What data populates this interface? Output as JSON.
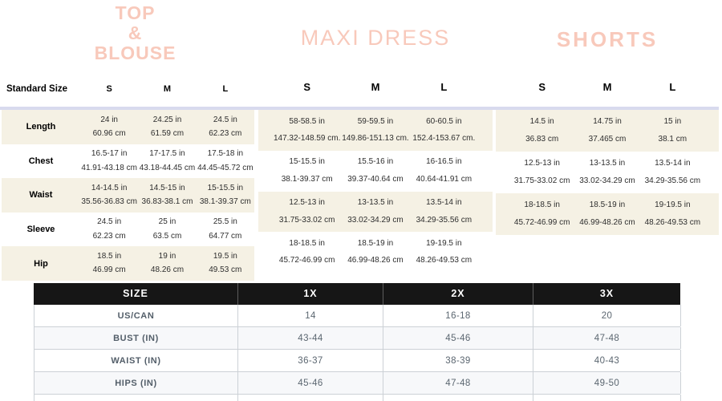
{
  "colors": {
    "title_pink": "#f8c9bb",
    "beige_row": "#f5f1e4",
    "lavender_border": "#d8daee",
    "dark_header": "#161616",
    "plus_text": "#5b6670",
    "plus_alt_row": "#f7f8fa",
    "plus_border": "#ccd1d6"
  },
  "tables": [
    {
      "title_lines": [
        "TOP",
        "&",
        "BLOUSE"
      ],
      "corner_label": "Standard Size",
      "sizes": [
        "S",
        "M",
        "L"
      ],
      "row_labels": [
        "Length",
        "Chest",
        "Waist",
        "Sleeve",
        "Hip"
      ],
      "rows": [
        [
          [
            "24 in",
            "60.96 cm"
          ],
          [
            "24.25 in",
            "61.59 cm"
          ],
          [
            "24.5 in",
            "62.23 cm"
          ]
        ],
        [
          [
            "16.5-17 in",
            "41.91-43.18 cm"
          ],
          [
            "17-17.5 in",
            "43.18-44.45 cm"
          ],
          [
            "17.5-18 in",
            "44.45-45.72 cm"
          ]
        ],
        [
          [
            "14-14.5 in",
            "35.56-36.83 cm"
          ],
          [
            "14.5-15 in",
            "36.83-38.1 cm"
          ],
          [
            "15-15.5 in",
            "38.1-39.37 cm"
          ]
        ],
        [
          [
            "24.5 in",
            "62.23 cm"
          ],
          [
            "25 in",
            "63.5 cm"
          ],
          [
            "25.5 in",
            "64.77 cm"
          ]
        ],
        [
          [
            "18.5 in",
            "46.99 cm"
          ],
          [
            "19 in",
            "48.26 cm"
          ],
          [
            "19.5 in",
            "49.53 cm"
          ]
        ]
      ]
    },
    {
      "title": "MAXI DRESS",
      "sizes": [
        "S",
        "M",
        "L"
      ],
      "rows": [
        [
          [
            "58-58.5 in",
            "147.32-148.59 cm."
          ],
          [
            "59-59.5 in",
            "149.86-151.13 cm."
          ],
          [
            "60-60.5 in",
            "152.4-153.67 cm."
          ]
        ],
        [
          [
            "15-15.5 in",
            "38.1-39.37 cm"
          ],
          [
            "15.5-16 in",
            "39.37-40.64 cm"
          ],
          [
            "16-16.5 in",
            "40.64-41.91 cm"
          ]
        ],
        [
          [
            "12.5-13 in",
            "31.75-33.02 cm"
          ],
          [
            "13-13.5 in",
            "33.02-34.29 cm"
          ],
          [
            "13.5-14 in",
            "34.29-35.56 cm"
          ]
        ],
        [
          [
            "18-18.5 in",
            "45.72-46.99 cm"
          ],
          [
            "18.5-19 in",
            "46.99-48.26 cm"
          ],
          [
            "19-19.5 in",
            "48.26-49.53 cm"
          ]
        ]
      ]
    },
    {
      "title": "SHORTS",
      "sizes": [
        "S",
        "M",
        "L"
      ],
      "rows": [
        [
          [
            "14.5 in",
            "36.83 cm"
          ],
          [
            "14.75 in",
            "37.465 cm"
          ],
          [
            "15 in",
            "38.1 cm"
          ]
        ],
        [
          [
            "12.5-13 in",
            "31.75-33.02 cm"
          ],
          [
            "13-13.5 in",
            "33.02-34.29 cm"
          ],
          [
            "13.5-14 in",
            "34.29-35.56 cm"
          ]
        ],
        [
          [
            "18-18.5 in",
            "45.72-46.99 cm"
          ],
          [
            "18.5-19 in",
            "46.99-48.26 cm"
          ],
          [
            "19-19.5 in",
            "48.26-49.53 cm"
          ]
        ]
      ]
    }
  ],
  "plus_table": {
    "headers": [
      "SIZE",
      "1X",
      "2X",
      "3X"
    ],
    "rows": [
      {
        "label": "US/CAN",
        "values": [
          "14",
          "16-18",
          "20"
        ]
      },
      {
        "label": "BUST (IN)",
        "values": [
          "43-44",
          "45-46",
          "47-48"
        ]
      },
      {
        "label": "WAIST (IN)",
        "values": [
          "36-37",
          "38-39",
          "40-43"
        ]
      },
      {
        "label": "HIPS (IN)",
        "values": [
          "45-46",
          "47-48",
          "49-50"
        ]
      }
    ]
  }
}
